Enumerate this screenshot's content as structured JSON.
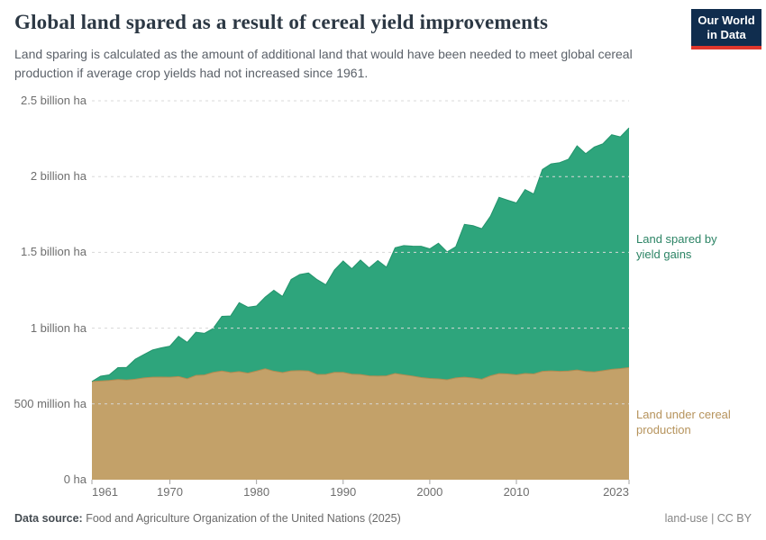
{
  "header": {
    "title": "Global land spared as a result of cereal yield improvements",
    "subtitle": "Land sparing is calculated as the amount of additional land that would have been needed to meet global cereal production if average crop yields had not increased since 1961.",
    "logo": {
      "line1": "Our World",
      "line2": "in Data",
      "bg_color": "#102d4e",
      "accent_color": "#e0362c"
    }
  },
  "chart_data": {
    "type": "area",
    "stacked": true,
    "title": "Global land spared as a result of cereal yield improvements",
    "unit": "million hectares",
    "ylim": [
      0,
      2500
    ],
    "grid": "dashed horizontal, drawn over areas",
    "legend_position": "right margin, colored text labels",
    "years": [
      1961,
      1962,
      1963,
      1964,
      1965,
      1966,
      1967,
      1968,
      1969,
      1970,
      1971,
      1972,
      1973,
      1974,
      1975,
      1976,
      1977,
      1978,
      1979,
      1980,
      1981,
      1982,
      1983,
      1984,
      1985,
      1986,
      1987,
      1988,
      1989,
      1990,
      1991,
      1992,
      1993,
      1994,
      1995,
      1996,
      1997,
      1998,
      1999,
      2000,
      2001,
      2002,
      2003,
      2004,
      2005,
      2006,
      2007,
      2008,
      2009,
      2010,
      2011,
      2012,
      2013,
      2014,
      2015,
      2016,
      2017,
      2018,
      2019,
      2020,
      2021,
      2022,
      2023
    ],
    "series": [
      {
        "name": "Land under cereal production",
        "color": "#c3a169",
        "edge_color": "#b18c52",
        "label_color": "#b6935c",
        "values_million_ha": [
          648,
          651,
          655,
          661,
          658,
          663,
          672,
          676,
          677,
          676,
          681,
          666,
          688,
          691,
          708,
          717,
          707,
          713,
          703,
          717,
          732,
          716,
          707,
          718,
          720,
          717,
          694,
          695,
          708,
          708,
          696,
          694,
          685,
          684,
          685,
          701,
          692,
          684,
          674,
          668,
          665,
          659,
          672,
          676,
          671,
          663,
          685,
          700,
          698,
          692,
          701,
          698,
          715,
          718,
          715,
          717,
          724,
          714,
          711,
          719,
          728,
          733,
          740
        ]
      },
      {
        "name": "Land spared by yield gains",
        "color": "#2ea57c",
        "edge_color": "#23946c",
        "label_color": "#2c8465",
        "values_million_ha": [
          0,
          32,
          37,
          78,
          83,
          132,
          154,
          180,
          193,
          205,
          265,
          240,
          285,
          275,
          290,
          361,
          373,
          455,
          435,
          429,
          473,
          534,
          502,
          603,
          634,
          647,
          626,
          591,
          676,
          735,
          696,
          755,
          713,
          762,
          717,
          829,
          853,
          857,
          866,
          855,
          895,
          844,
          865,
          1009,
          1005,
          993,
          1053,
          1163,
          1146,
          1134,
          1213,
          1187,
          1332,
          1366,
          1377,
          1397,
          1479,
          1437,
          1484,
          1498,
          1548,
          1529,
          1581
        ]
      }
    ],
    "y_ticks": [
      {
        "value": 0,
        "label": "0 ha"
      },
      {
        "value": 500,
        "label": "500 million ha"
      },
      {
        "value": 1000,
        "label": "1 billion ha"
      },
      {
        "value": 1500,
        "label": "1.5 billion ha"
      },
      {
        "value": 2000,
        "label": "2 billion ha"
      },
      {
        "value": 2500,
        "label": "2.5 billion ha"
      }
    ],
    "x_ticks": [
      {
        "year": 1961,
        "label": "1961"
      },
      {
        "year": 1970,
        "label": "1970"
      },
      {
        "year": 1980,
        "label": "1980"
      },
      {
        "year": 1990,
        "label": "1990"
      },
      {
        "year": 2000,
        "label": "2000"
      },
      {
        "year": 2010,
        "label": "2010"
      },
      {
        "year": 2023,
        "label": "2023"
      }
    ],
    "gridline_color": "#d8d8d8",
    "axis_text_color": "#6e6e6e"
  },
  "annotations": {
    "spared_lines": [
      "Land spared by",
      "yield gains"
    ],
    "cereal_lines": [
      "Land under cereal",
      "production"
    ]
  },
  "footer": {
    "source_prefix": "Data source:",
    "source_text": "Food and Agriculture Organization of the United Nations (2025)",
    "right_text": "land-use | CC BY"
  }
}
